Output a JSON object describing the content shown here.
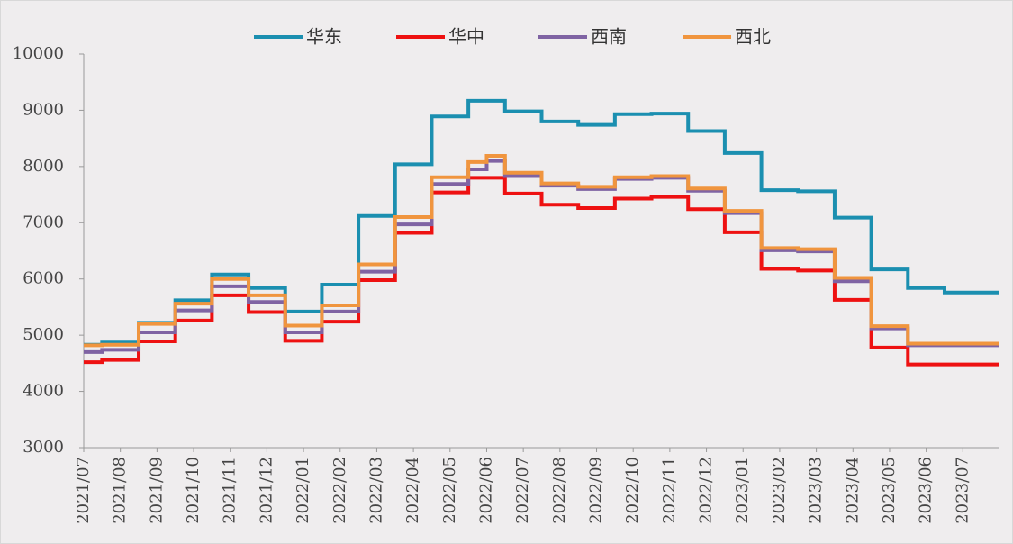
{
  "chart_data": {
    "type": "line",
    "step": true,
    "categories": [
      "2021/07",
      null,
      "2021/08",
      null,
      "2021/09",
      null,
      "2021/10",
      null,
      "2021/11",
      null,
      "2021/12",
      null,
      "2022/01",
      null,
      "2022/02",
      null,
      "2022/03",
      null,
      "2022/04",
      null,
      "2022/05",
      null,
      "2022/06",
      null,
      "2022/07",
      null,
      "2022/08",
      null,
      "2022/09",
      null,
      "2022/10",
      null,
      "2022/11",
      null,
      "2022/12",
      null,
      "2023/01",
      null,
      "2023/02",
      null,
      "2023/03",
      null,
      "2023/04",
      null,
      "2023/05",
      null,
      "2023/06",
      null,
      "2023/07",
      null
    ],
    "series": [
      {
        "name": "华东",
        "color": "#1b8fb0",
        "values": [
          4830,
          4870,
          4870,
          5220,
          5220,
          5620,
          5620,
          6080,
          6080,
          5840,
          5840,
          5420,
          5420,
          5900,
          5900,
          7120,
          7120,
          8040,
          8040,
          8890,
          8890,
          9170,
          9170,
          8980,
          8980,
          8800,
          8800,
          8740,
          8740,
          8930,
          8930,
          8940,
          8940,
          8630,
          8630,
          8240,
          8240,
          7580,
          7580,
          7560,
          7560,
          7090,
          7090,
          6170,
          6170,
          5840,
          5840,
          5760,
          5760,
          5760
        ]
      },
      {
        "name": "华中",
        "color": "#ee1111",
        "values": [
          4520,
          4560,
          4560,
          4890,
          4890,
          5260,
          5260,
          5710,
          5710,
          5410,
          5410,
          4900,
          4900,
          5240,
          5240,
          5980,
          5980,
          6820,
          6820,
          7540,
          7540,
          7800,
          7800,
          7520,
          7520,
          7320,
          7320,
          7260,
          7260,
          7430,
          7430,
          7460,
          7460,
          7240,
          7240,
          6830,
          6830,
          6180,
          6180,
          6150,
          6150,
          5630,
          5630,
          4780,
          4780,
          4480,
          4480,
          4480,
          4480,
          4480
        ]
      },
      {
        "name": "西南",
        "color": "#7f63a3",
        "values": [
          4700,
          4740,
          4740,
          5050,
          5050,
          5440,
          5440,
          5870,
          5870,
          5590,
          5590,
          5050,
          5050,
          5420,
          5420,
          6130,
          6130,
          6970,
          6970,
          7690,
          7690,
          7950,
          8100,
          7830,
          7830,
          7660,
          7660,
          7600,
          7600,
          7780,
          7780,
          7800,
          7800,
          7570,
          7570,
          7170,
          7170,
          6510,
          6510,
          6490,
          6490,
          5960,
          5960,
          5120,
          5120,
          4820,
          4820,
          4820,
          4820,
          4820
        ]
      },
      {
        "name": "西北",
        "color": "#f0953e",
        "values": [
          4820,
          4830,
          4830,
          5200,
          5200,
          5560,
          5560,
          6000,
          6000,
          5710,
          5710,
          5170,
          5170,
          5530,
          5530,
          6260,
          6260,
          7100,
          7100,
          7810,
          7810,
          8080,
          8190,
          7890,
          7890,
          7700,
          7700,
          7640,
          7640,
          7810,
          7810,
          7830,
          7830,
          7610,
          7610,
          7210,
          7210,
          6550,
          6550,
          6530,
          6530,
          6020,
          6020,
          5160,
          5160,
          4850,
          4850,
          4850,
          4850,
          4850
        ]
      }
    ],
    "ylim": [
      3000,
      10000
    ],
    "yticks": [
      3000,
      4000,
      5000,
      6000,
      7000,
      8000,
      9000,
      10000
    ],
    "legend": "top",
    "grid": false
  }
}
